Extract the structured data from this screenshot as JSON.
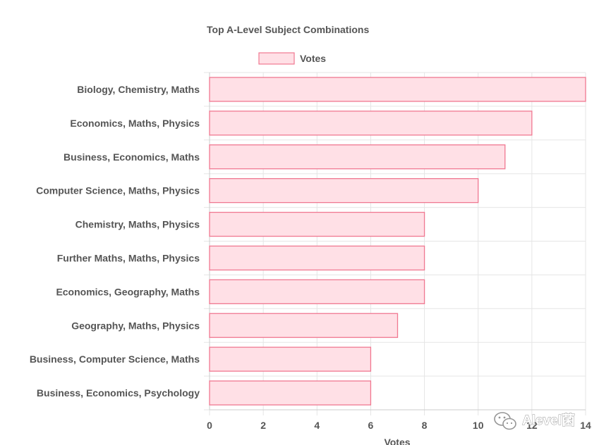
{
  "chart_data": {
    "type": "bar",
    "orientation": "horizontal",
    "title": "Top A-Level Subject Combinations",
    "xlabel": "Votes",
    "ylabel": "",
    "xlim": [
      0,
      14
    ],
    "xticks": [
      0,
      2,
      4,
      6,
      8,
      10,
      12,
      14
    ],
    "grid": true,
    "legend_position": "top",
    "categories": [
      "Biology, Chemistry, Maths",
      "Economics, Maths, Physics",
      "Business, Economics, Maths",
      "Computer Science, Maths, Physics",
      "Chemistry, Maths, Physics",
      "Further Maths, Maths, Physics",
      "Economics, Geography, Maths",
      "Geography, Maths, Physics",
      "Business, Computer Science, Maths",
      "Business, Economics, Psychology"
    ],
    "series": [
      {
        "name": "Votes",
        "values": [
          14,
          12,
          11,
          10,
          8,
          8,
          8,
          7,
          6,
          6
        ],
        "fill_color": "#ffe0e6",
        "border_color": "#f07891"
      }
    ]
  },
  "watermark": {
    "text": "Alevel菌",
    "icon": "wechat-icon"
  },
  "colors": {
    "text": "#555555",
    "grid": "#e5e5e5",
    "axis": "#cccccc"
  }
}
